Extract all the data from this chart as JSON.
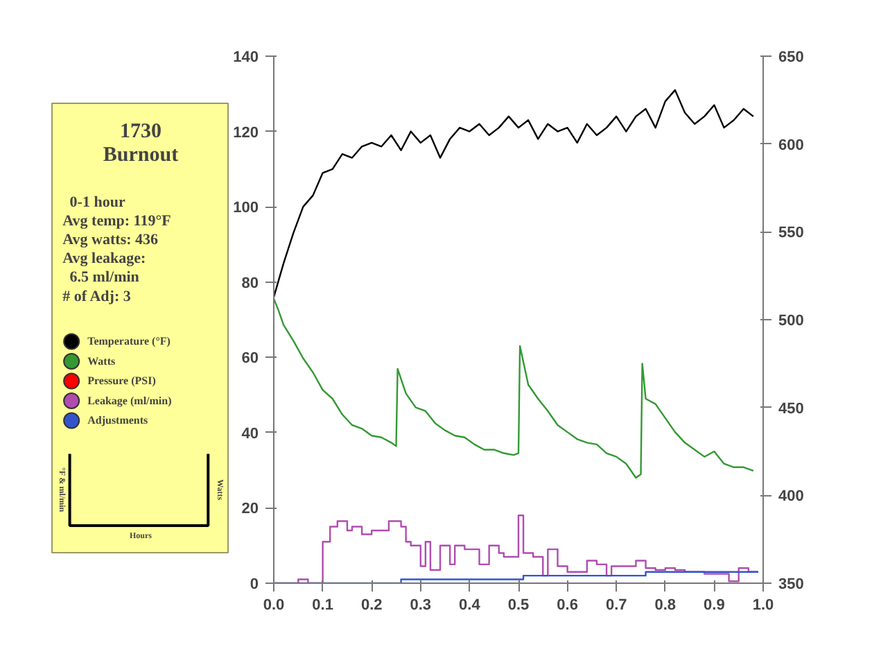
{
  "chart_data": {
    "type": "line",
    "title": "1730",
    "subtitle": "Burnout",
    "annotations": [
      "0-1 hour",
      "Avg temp: 119°F",
      "Avg watts: 436",
      "Avg leakage:",
      "6.5 ml/min",
      "# of Adj: 3",
      "°F & ml/min",
      "Watts",
      "Hours"
    ],
    "xlim": [
      0,
      1
    ],
    "xticks": [
      {
        "value": 0,
        "label": "0.0"
      },
      {
        "value": 0.1,
        "label": "0.1"
      },
      {
        "value": 0.2,
        "label": "0.2"
      },
      {
        "value": 0.3,
        "label": "0.3"
      },
      {
        "value": 0.4,
        "label": "0.4"
      },
      {
        "value": 0.5,
        "label": "0.5"
      },
      {
        "value": 0.6,
        "label": "0.6"
      },
      {
        "value": 0.7,
        "label": "0.7"
      },
      {
        "value": 0.8,
        "label": "0.8"
      },
      {
        "value": 0.9,
        "label": "0.9"
      },
      {
        "value": 1,
        "label": "1.0"
      }
    ],
    "ylim": [
      0,
      140
    ],
    "yticks": [
      0,
      20,
      40,
      60,
      80,
      100,
      120,
      140
    ],
    "y2lim": [
      350,
      650
    ],
    "y2ticks": [
      350,
      400,
      450,
      500,
      550,
      600,
      650
    ],
    "grid": false,
    "legend": "left",
    "marker": "none",
    "line_style": "solid",
    "series": [
      {
        "name": "Temperature (°F)",
        "color": "#000000",
        "x": [
          0,
          0.02,
          0.04,
          0.06,
          0.08,
          0.1,
          0.12,
          0.14,
          0.16,
          0.18,
          0.2,
          0.22,
          0.24,
          0.26,
          0.28,
          0.3,
          0.32,
          0.34,
          0.36,
          0.38,
          0.4,
          0.42,
          0.44,
          0.46,
          0.48,
          0.5,
          0.52,
          0.54,
          0.56,
          0.58,
          0.6,
          0.62,
          0.64,
          0.66,
          0.68,
          0.7,
          0.72,
          0.74,
          0.76,
          0.78,
          0.8,
          0.82,
          0.84,
          0.86,
          0.88,
          0.9,
          0.92,
          0.94,
          0.96,
          0.98
        ],
        "values": [
          76,
          85,
          93,
          100,
          103,
          109,
          110,
          114,
          113,
          116,
          117,
          116,
          119,
          115,
          120,
          117,
          119,
          113,
          118,
          121,
          120,
          122,
          119,
          121,
          124,
          121,
          123,
          118,
          122,
          120,
          121,
          117,
          122,
          119,
          121,
          124,
          120,
          124,
          126,
          121,
          128,
          131,
          125,
          122,
          124,
          127,
          121,
          123,
          126,
          124
        ]
      },
      {
        "name": "Watts",
        "color": "#339933",
        "axis": "y2",
        "x": [
          0,
          0.01,
          0.02,
          0.04,
          0.06,
          0.08,
          0.1,
          0.12,
          0.14,
          0.16,
          0.18,
          0.2,
          0.22,
          0.24,
          0.25,
          0.253,
          0.27,
          0.29,
          0.31,
          0.33,
          0.35,
          0.37,
          0.39,
          0.41,
          0.43,
          0.45,
          0.47,
          0.49,
          0.5,
          0.503,
          0.52,
          0.54,
          0.56,
          0.58,
          0.6,
          0.62,
          0.64,
          0.66,
          0.68,
          0.7,
          0.72,
          0.74,
          0.75,
          0.753,
          0.76,
          0.78,
          0.8,
          0.82,
          0.84,
          0.86,
          0.88,
          0.9,
          0.92,
          0.94,
          0.96,
          0.98
        ],
        "values": [
          512,
          505,
          497,
          488,
          478,
          470,
          460,
          455,
          446,
          440,
          438,
          434,
          433,
          430,
          428,
          472,
          458,
          450,
          448,
          441,
          437,
          434,
          433,
          429,
          426,
          426,
          424,
          423,
          424,
          485,
          463,
          455,
          448,
          440,
          436,
          432,
          430,
          429,
          424,
          422,
          418,
          410,
          412,
          475,
          455,
          452,
          444,
          436,
          430,
          426,
          422,
          425,
          418,
          416,
          416,
          414
        ]
      },
      {
        "name": "Pressure (PSI)",
        "color": "#ff0000"
      },
      {
        "name": "Leakage (ml/min)",
        "color": "#b04cb0",
        "type": "step",
        "x": [
          0,
          0.05,
          0.07,
          0.1,
          0.115,
          0.13,
          0.15,
          0.16,
          0.18,
          0.2,
          0.235,
          0.26,
          0.27,
          0.28,
          0.3,
          0.31,
          0.32,
          0.34,
          0.36,
          0.37,
          0.39,
          0.42,
          0.44,
          0.46,
          0.47,
          0.5,
          0.51,
          0.53,
          0.55,
          0.56,
          0.58,
          0.6,
          0.64,
          0.66,
          0.68,
          0.69,
          0.74,
          0.76,
          0.78,
          0.8,
          0.82,
          0.84,
          0.88,
          0.93,
          0.95,
          0.97,
          0.99
        ],
        "values": [
          0,
          1,
          0,
          11,
          15,
          16.5,
          14,
          15,
          13,
          14,
          16.5,
          15,
          11,
          10,
          4.5,
          11,
          3.5,
          10,
          5,
          10,
          9,
          5,
          10,
          8,
          7,
          18,
          8,
          7,
          2,
          9,
          4.5,
          3,
          6,
          5,
          2,
          4.5,
          6,
          4,
          3.5,
          4,
          3.5,
          3,
          2.5,
          0.5,
          4,
          3,
          3
        ]
      },
      {
        "name": "Adjustments",
        "color": "#3355cc",
        "type": "step",
        "x": [
          0,
          0.26,
          0.51,
          0.76,
          0.99
        ],
        "values": [
          0,
          1,
          2,
          3,
          3
        ]
      }
    ]
  }
}
